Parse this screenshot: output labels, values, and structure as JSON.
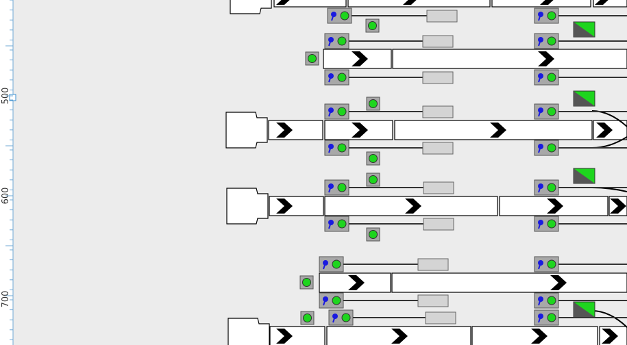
{
  "ruler": {
    "labels": [
      "500",
      "600",
      "700"
    ]
  }
}
